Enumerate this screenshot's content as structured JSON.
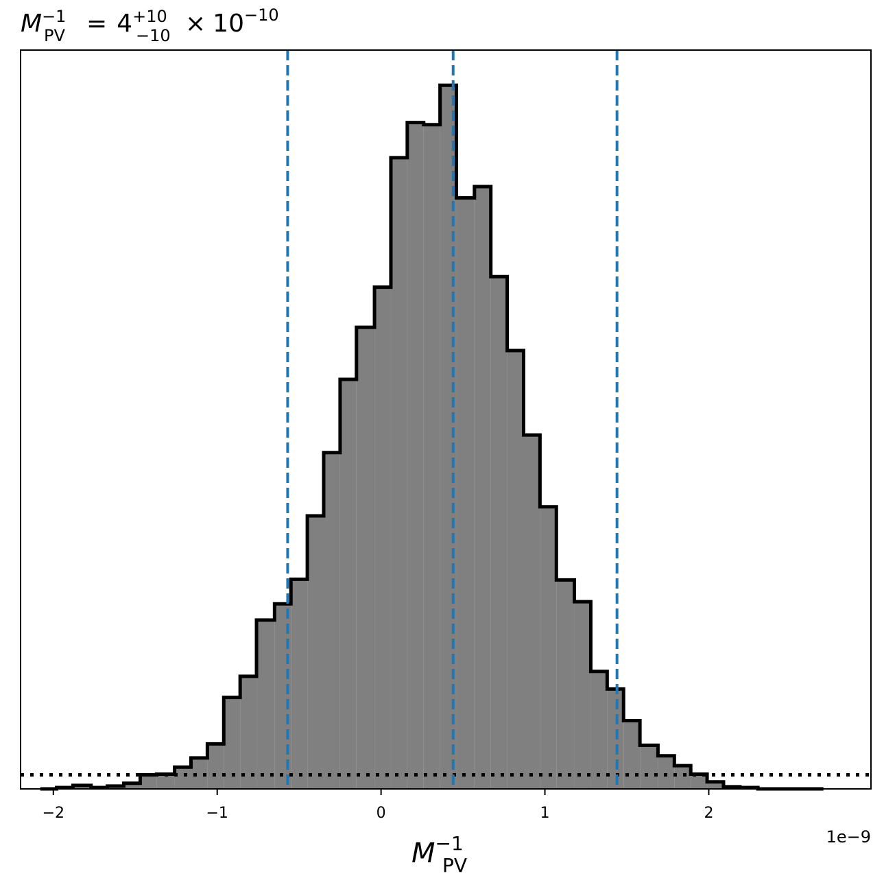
{
  "chart_data": {
    "type": "bar",
    "title": {
      "lhs_base": "M",
      "lhs_sup": "−1",
      "lhs_sub": "PV",
      "equals": "=",
      "value": "4",
      "err_plus": "+10",
      "err_minus": "−10",
      "times": "×",
      "power_base": "10",
      "power_exp": "−10"
    },
    "xlabel": {
      "base": "M",
      "sup": "−1",
      "sub": "PV"
    },
    "ylabel": "",
    "offset_text": "1e−9",
    "xlim": [
      -2.2,
      2.99
    ],
    "ylim": [
      0,
      1050
    ],
    "xticks": [
      {
        "value": -2,
        "label": "−2"
      },
      {
        "value": -1,
        "label": "−1"
      },
      {
        "value": 0,
        "label": "0"
      },
      {
        "value": 1,
        "label": "1"
      },
      {
        "value": 2,
        "label": "2"
      }
    ],
    "show_yticks": false,
    "grid": false,
    "bin_edges": [
      -2.08,
      -1.98,
      -1.88,
      -1.77,
      -1.67,
      -1.57,
      -1.47,
      -1.37,
      -1.26,
      -1.16,
      -1.06,
      -0.96,
      -0.86,
      -0.76,
      -0.65,
      -0.55,
      -0.45,
      -0.35,
      -0.25,
      -0.15,
      -0.04,
      0.06,
      0.16,
      0.26,
      0.36,
      0.46,
      0.57,
      0.67,
      0.77,
      0.87,
      0.97,
      1.07,
      1.18,
      1.28,
      1.38,
      1.48,
      1.58,
      1.69,
      1.79,
      1.89,
      1.99,
      2.09,
      2.19,
      2.3,
      2.4,
      2.5,
      2.6,
      2.7
    ],
    "counts": [
      0,
      2,
      5,
      2,
      4,
      8,
      20,
      21,
      31,
      44,
      64,
      130,
      160,
      240,
      263,
      298,
      388,
      478,
      582,
      656,
      713,
      897,
      947,
      944,
      1000,
      840,
      856,
      728,
      623,
      503,
      401,
      297,
      266,
      167,
      142,
      97,
      62,
      47,
      33,
      21,
      10,
      3,
      2,
      0,
      0,
      0,
      0
    ],
    "hist_fill": "#808080",
    "hist_edge": "#000000",
    "quantile_lines": [
      -0.57,
      0.44,
      1.44
    ],
    "quantile_color": "#1f77b4",
    "reference_line_y": 20,
    "reference_color": "#000000"
  }
}
